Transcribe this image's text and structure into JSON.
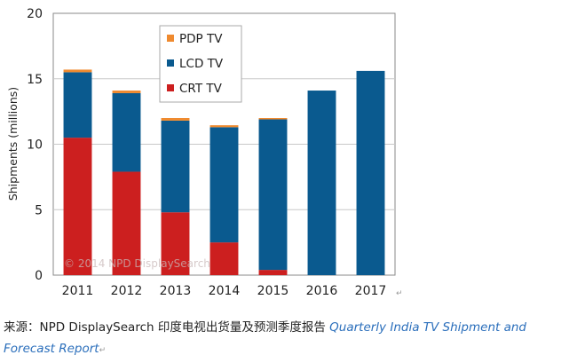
{
  "chart_data": {
    "type": "bar",
    "stacked": true,
    "categories": [
      "2011",
      "2012",
      "2013",
      "2014",
      "2015",
      "2016",
      "2017"
    ],
    "series": [
      {
        "name": "CRT TV",
        "color": "#cc1f1f",
        "values": [
          10.5,
          7.9,
          4.8,
          2.5,
          0.4,
          0,
          0
        ]
      },
      {
        "name": "LCD TV",
        "color": "#0a5a8f",
        "values": [
          5.0,
          6.0,
          7.0,
          8.8,
          11.5,
          14.1,
          15.6
        ]
      },
      {
        "name": "PDP TV",
        "color": "#ef8a2f",
        "values": [
          0.2,
          0.2,
          0.2,
          0.15,
          0.1,
          0,
          0
        ]
      }
    ],
    "legend_order": [
      "PDP TV",
      "LCD TV",
      "CRT TV"
    ],
    "legend_position": "top-center, inside plot",
    "ylabel": "Shipments (millions)",
    "ylim": [
      0,
      20
    ],
    "yticks": [
      0,
      5,
      10,
      15,
      20
    ],
    "grid": true,
    "watermark": "© 2014 NPD DisplaySearch"
  },
  "caption": {
    "prefix": "来源：NPD DisplaySearch 印度电视出货量及预测季度报告 ",
    "link_text": "Quarterly  India TV Shipment and Forecast Report",
    "return_mark": "↵"
  },
  "axis_return_mark": "↵"
}
